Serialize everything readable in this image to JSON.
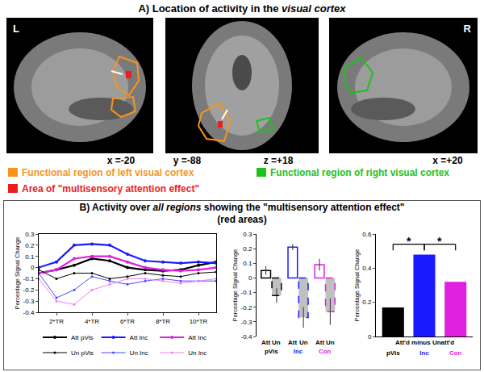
{
  "panel_a": {
    "title": "A) Location of activity in the visual cortex",
    "title_italic": "visual cortex",
    "sides": [
      "L",
      "R"
    ],
    "coordinates": [
      "x =-20",
      "y =-88",
      "z =+18",
      "x =+20"
    ],
    "legend": [
      {
        "text": "Functional region of left visual cortex",
        "color": "#f7941d"
      },
      {
        "text": "Functional region of right visual cortex",
        "color": "#1ec21e"
      },
      {
        "text": "Area of \"multisensory attention effect\"",
        "color": "#ee1c1c"
      }
    ]
  },
  "panel_b": {
    "title": "B) Activity over all regions showing the \"multisensory attention effect\"",
    "title_italic": "all regions",
    "subtitle": "(red areas)"
  },
  "chart_data": [
    {
      "type": "line",
      "x": [
        1,
        2,
        3,
        4,
        5,
        6,
        7,
        8,
        9,
        10,
        11
      ],
      "xlim": [
        1,
        11
      ],
      "xticks": [
        {
          "value": 2,
          "label": "2*TR"
        },
        {
          "value": 4,
          "label": "4*TR"
        },
        {
          "value": 6,
          "label": "6*TR"
        },
        {
          "value": 8,
          "label": "8*TR"
        },
        {
          "value": 10,
          "label": "10*TR"
        }
      ],
      "ylim": [
        -0.4,
        0.3
      ],
      "yticks": [
        -0.4,
        -0.3,
        -0.2,
        -0.1,
        0,
        0.1,
        0.2,
        0.3
      ],
      "ylabel": "Percentage Signal Change",
      "legend": "bottom",
      "marker": "circle",
      "series": [
        {
          "name": "Att pVis",
          "color": "#000000",
          "line_style": "solid",
          "values": [
            -0.05,
            -0.02,
            0.02,
            0.08,
            0.06,
            0.0,
            -0.02,
            -0.03,
            -0.02,
            0.02,
            0.05
          ]
        },
        {
          "name": "Att Inc",
          "color": "#1a1aff",
          "line_style": "solid",
          "values": [
            0.0,
            0.05,
            0.2,
            0.21,
            0.2,
            0.12,
            0.06,
            0.05,
            0.04,
            0.05,
            0.04
          ]
        },
        {
          "name": "Att Inc",
          "color": "#e020e0",
          "line_style": "solid",
          "values": [
            -0.05,
            -0.02,
            0.08,
            0.1,
            0.1,
            0.05,
            0.0,
            -0.02,
            -0.03,
            -0.02,
            0.0
          ]
        },
        {
          "name": "Un pVis",
          "color": "#000000",
          "line_style": "thin",
          "values": [
            -0.02,
            -0.1,
            -0.05,
            -0.05,
            -0.1,
            -0.08,
            -0.05,
            -0.07,
            -0.08,
            -0.05,
            -0.04
          ]
        },
        {
          "name": "Un Inc",
          "color": "#4a4aff",
          "line_style": "thin",
          "values": [
            -0.05,
            -0.27,
            -0.2,
            -0.08,
            -0.12,
            -0.15,
            -0.12,
            -0.1,
            -0.12,
            -0.12,
            -0.12
          ]
        },
        {
          "name": "Un Inc",
          "color": "#f080f0",
          "line_style": "thin",
          "values": [
            -0.1,
            -0.3,
            -0.33,
            -0.2,
            -0.15,
            -0.1,
            -0.1,
            -0.12,
            -0.14,
            -0.12,
            -0.1
          ]
        }
      ]
    },
    {
      "type": "bar",
      "categories": [
        "pVis",
        "Inc",
        "Con"
      ],
      "colors": [
        "#000000",
        "#1a1aff",
        "#e020e0"
      ],
      "ylim": [
        -0.4,
        0.3
      ],
      "yticks": [
        -0.4,
        -0.3,
        -0.2,
        -0.1,
        0,
        0.1,
        0.2,
        0.3
      ],
      "ylabel": "Percentage Signal Change",
      "series": [
        {
          "name": "Att",
          "color": "#ffffff",
          "line_style": "solid",
          "values": [
            0.05,
            0.21,
            0.09
          ],
          "errors": [
            0.03,
            0.02,
            0.04
          ]
        },
        {
          "name": "Un",
          "color": "#c0c0c0",
          "line_style": "dashed",
          "values": [
            -0.12,
            -0.27,
            -0.23
          ],
          "errors": [
            0.05,
            0.07,
            0.09
          ]
        }
      ]
    },
    {
      "type": "bar",
      "categories": [
        "pVis",
        "Inc",
        "Con"
      ],
      "values": [
        0.17,
        0.48,
        0.32
      ],
      "colors": [
        "#000000",
        "#1a1aff",
        "#e020e0"
      ],
      "ylim": [
        0,
        0.6
      ],
      "yticks": [
        0,
        0.2,
        0.4,
        0.6
      ],
      "ylabel": "Percentage Signal Change",
      "xlabel": "Att'd minus Unatt'd",
      "annotations": [
        {
          "text": "*",
          "from": "pVis",
          "to": "Inc"
        },
        {
          "text": "*",
          "from": "Inc",
          "to": "Con"
        }
      ]
    }
  ]
}
